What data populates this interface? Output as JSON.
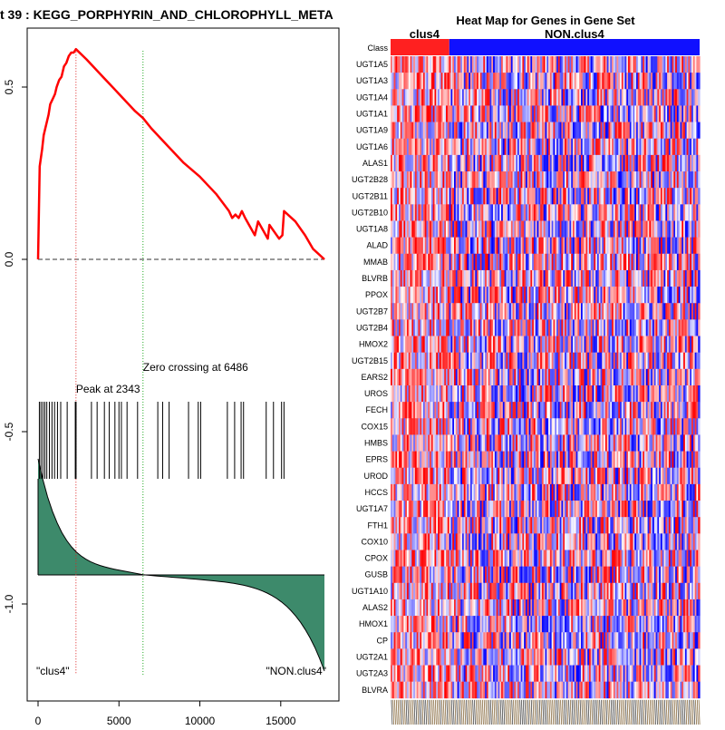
{
  "colors": {
    "curve": "#ff0000",
    "peak_line": "#dd2222",
    "zero_line": "#22aa22",
    "fill": "#3d8a6b",
    "class_a": "#ff2020",
    "class_b": "#1010ff",
    "heat_high": "#ff0000",
    "heat_low": "#0000ff"
  },
  "chart_data": [
    {
      "type": "line",
      "title": "t  39 : KEGG_PORPHYRIN_AND_CHLOROPHYLL_META",
      "xlim": [
        0,
        17700
      ],
      "ylim": [
        -1.2,
        0.7
      ],
      "xticks": [
        0,
        5000,
        10000,
        15000
      ],
      "xtick_labels": [
        "0",
        "5000",
        "10000",
        "15000"
      ],
      "yticks": [
        0.5,
        0.0,
        -0.5,
        -1.0
      ],
      "ytick_labels": [
        "0.5",
        "0.0",
        "-0.5",
        "-1.0"
      ],
      "enrichment_score": {
        "x": [
          0,
          100,
          250,
          350,
          450,
          550,
          650,
          750,
          850,
          950,
          1050,
          1150,
          1300,
          1450,
          1600,
          1750,
          1900,
          2050,
          2200,
          2343,
          3000,
          4000,
          5000,
          6000,
          6486,
          7000,
          8000,
          9000,
          10000,
          11000,
          11800,
          12000,
          12200,
          12400,
          12600,
          12800,
          13400,
          13600,
          14200,
          14300,
          14900,
          15100,
          15200,
          15900,
          16500,
          17000,
          17700
        ],
        "y": [
          0.0,
          0.27,
          0.32,
          0.36,
          0.38,
          0.4,
          0.42,
          0.45,
          0.46,
          0.47,
          0.48,
          0.5,
          0.52,
          0.53,
          0.56,
          0.57,
          0.59,
          0.6,
          0.6,
          0.61,
          0.58,
          0.53,
          0.48,
          0.43,
          0.41,
          0.38,
          0.33,
          0.28,
          0.24,
          0.19,
          0.14,
          0.12,
          0.13,
          0.12,
          0.14,
          0.12,
          0.07,
          0.11,
          0.06,
          0.1,
          0.06,
          0.07,
          0.14,
          0.11,
          0.07,
          0.03,
          0.0
        ]
      },
      "hit_positions": [
        80,
        180,
        300,
        420,
        540,
        700,
        860,
        1020,
        1200,
        1400,
        1800,
        2300,
        2350,
        3300,
        3650,
        4100,
        4400,
        4750,
        5000,
        5150,
        5500,
        6150,
        7400,
        7700,
        8100,
        9300,
        9900,
        10050,
        11700,
        12150,
        12550,
        12700,
        14100,
        14550,
        15050,
        15200
      ],
      "peak": {
        "x": 2343,
        "label": "Peak at 2343"
      },
      "zero_crossing": {
        "x": 6486,
        "label": "Zero crossing at 6486"
      },
      "left_label": "\"clus4\"",
      "right_label": "\"NON.clus4\""
    },
    {
      "type": "heatmap",
      "title": "Heat Map for Genes in Gene Set",
      "class_row_label": "Class",
      "classes": [
        {
          "name": "clus4",
          "fraction": 0.19
        },
        {
          "name": "NON.clus4",
          "fraction": 0.81
        }
      ],
      "genes": [
        "UGT1A5",
        "UGT1A3",
        "UGT1A4",
        "UGT1A1",
        "UGT1A9",
        "UGT1A6",
        "ALAS1",
        "UGT2B28",
        "UGT2B11",
        "UGT2B10",
        "UGT1A8",
        "ALAD",
        "MMAB",
        "BLVRB",
        "PPOX",
        "UGT2B7",
        "UGT2B4",
        "HMOX2",
        "UGT2B15",
        "EARS2",
        "UROS",
        "FECH",
        "COX15",
        "HMBS",
        "EPRS",
        "UROD",
        "HCCS",
        "UGT1A7",
        "FTH1",
        "COX10",
        "CPOX",
        "GUSB",
        "UGT1A10",
        "ALAS2",
        "HMOX1",
        "CP",
        "UGT2A1",
        "UGT2A3",
        "BLVRA"
      ],
      "sample_count": 190
    }
  ]
}
